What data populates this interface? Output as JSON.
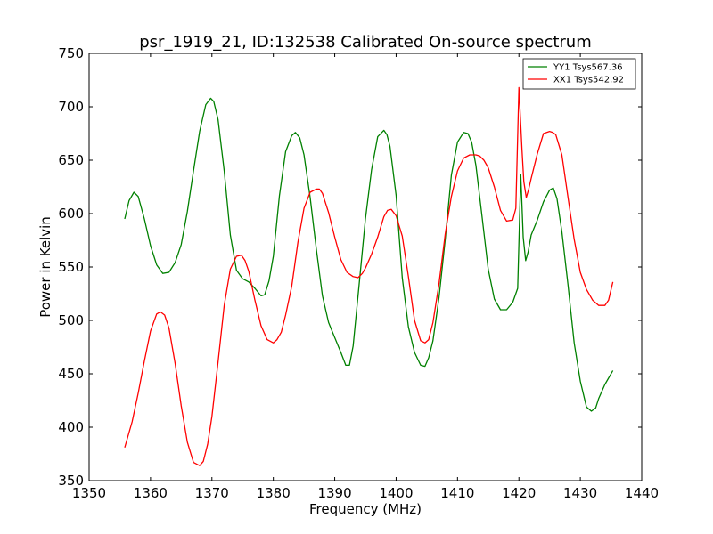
{
  "chart_data": {
    "type": "line",
    "title": "psr_1919_21, ID:132538 Calibrated On-source spectrum",
    "xlabel": "Frequency (MHz)",
    "ylabel": "Power in Kelvin",
    "xlim": [
      1350,
      1440
    ],
    "ylim": [
      350,
      750
    ],
    "xticks": [
      1350,
      1360,
      1370,
      1380,
      1390,
      1400,
      1410,
      1420,
      1430,
      1440
    ],
    "yticks": [
      350,
      400,
      450,
      500,
      550,
      600,
      650,
      700,
      750
    ],
    "grid": false,
    "legend_position": "top-right",
    "series": [
      {
        "name": "YY1 Tsys567.36",
        "color": "#008000",
        "x": [
          1355.8,
          1356.5,
          1357.3,
          1358.0,
          1359.0,
          1360.0,
          1361.0,
          1362.0,
          1363.0,
          1364.0,
          1365.0,
          1366.0,
          1367.0,
          1368.0,
          1369.0,
          1369.8,
          1370.3,
          1371.0,
          1372.0,
          1373.0,
          1374.0,
          1375.0,
          1376.0,
          1377.0,
          1378.0,
          1378.6,
          1379.3,
          1380.0,
          1381.0,
          1382.0,
          1383.0,
          1383.6,
          1384.3,
          1385.0,
          1386.0,
          1387.0,
          1388.0,
          1389.0,
          1390.0,
          1391.0,
          1391.8,
          1392.4,
          1393.0,
          1394.0,
          1395.0,
          1396.0,
          1397.0,
          1398.0,
          1398.5,
          1399.0,
          1400.0,
          1401.0,
          1402.0,
          1403.0,
          1404.0,
          1404.7,
          1405.3,
          1406.0,
          1407.0,
          1408.0,
          1409.0,
          1410.0,
          1411.0,
          1411.7,
          1412.3,
          1413.0,
          1414.0,
          1415.0,
          1416.0,
          1417.0,
          1418.0,
          1419.0,
          1419.8,
          1420.3,
          1420.7,
          1421.1,
          1421.5,
          1422.0,
          1423.0,
          1424.0,
          1425.0,
          1425.6,
          1426.2,
          1427.0,
          1428.0,
          1429.0,
          1430.0,
          1431.0,
          1431.8,
          1432.5,
          1433.0,
          1434.0,
          1435.3
        ],
        "y": [
          595,
          612,
          620,
          616,
          595,
          570,
          552,
          544,
          545,
          554,
          571,
          602,
          640,
          677,
          702,
          708,
          705,
          688,
          640,
          580,
          547,
          539,
          536,
          530,
          523,
          524,
          537,
          560,
          617,
          658,
          673,
          676,
          671,
          655,
          615,
          567,
          523,
          498,
          484,
          470,
          458,
          458,
          476,
          535,
          595,
          641,
          672,
          678,
          674,
          663,
          617,
          540,
          494,
          470,
          458,
          457,
          465,
          481,
          522,
          576,
          636,
          667,
          676,
          675,
          667,
          645,
          597,
          548,
          520,
          510,
          510,
          517,
          530,
          637,
          578,
          556,
          564,
          580,
          594,
          611,
          622,
          624,
          614,
          583,
          533,
          479,
          443,
          419,
          415,
          418,
          427,
          440,
          453
        ]
      },
      {
        "name": "XX1 Tsys542.92",
        "color": "#ff0000",
        "x": [
          1355.8,
          1357.0,
          1358.0,
          1359.0,
          1360.0,
          1361.0,
          1361.6,
          1362.3,
          1363.0,
          1364.0,
          1365.0,
          1366.0,
          1367.0,
          1368.0,
          1368.6,
          1369.3,
          1370.0,
          1371.0,
          1372.0,
          1373.0,
          1374.0,
          1374.8,
          1375.4,
          1376.0,
          1377.0,
          1378.0,
          1379.0,
          1380.0,
          1380.6,
          1381.3,
          1382.0,
          1383.0,
          1384.0,
          1385.0,
          1386.0,
          1387.0,
          1387.5,
          1388.0,
          1389.0,
          1390.0,
          1391.0,
          1392.0,
          1393.0,
          1393.8,
          1394.5,
          1395.0,
          1396.0,
          1397.0,
          1398.0,
          1398.6,
          1399.2,
          1400.0,
          1401.0,
          1402.0,
          1403.0,
          1404.0,
          1404.7,
          1405.3,
          1406.0,
          1407.0,
          1408.0,
          1409.0,
          1410.0,
          1411.0,
          1412.0,
          1413.0,
          1413.6,
          1414.3,
          1415.0,
          1416.0,
          1417.0,
          1418.0,
          1419.0,
          1419.5,
          1420.0,
          1420.5,
          1420.8,
          1421.2,
          1421.6,
          1422.0,
          1423.0,
          1424.0,
          1425.0,
          1425.5,
          1426.0,
          1427.0,
          1428.0,
          1429.0,
          1430.0,
          1431.0,
          1432.0,
          1433.0,
          1434.0,
          1434.6,
          1435.3
        ],
        "y": [
          381,
          405,
          432,
          462,
          490,
          506,
          508,
          505,
          493,
          460,
          420,
          386,
          367,
          364,
          368,
          384,
          410,
          461,
          514,
          548,
          560,
          561,
          556,
          546,
          519,
          495,
          482,
          479,
          482,
          489,
          505,
          532,
          573,
          605,
          620,
          623,
          623,
          619,
          601,
          578,
          557,
          545,
          541,
          540,
          544,
          549,
          562,
          578,
          597,
          603,
          604,
          598,
          579,
          541,
          500,
          481,
          479,
          482,
          498,
          535,
          581,
          616,
          640,
          652,
          655,
          655,
          654,
          650,
          643,
          625,
          603,
          593,
          594,
          605,
          718,
          660,
          630,
          615,
          623,
          633,
          656,
          675,
          677,
          676,
          674,
          655,
          615,
          576,
          545,
          529,
          519,
          514,
          514,
          519,
          536
        ]
      }
    ]
  }
}
